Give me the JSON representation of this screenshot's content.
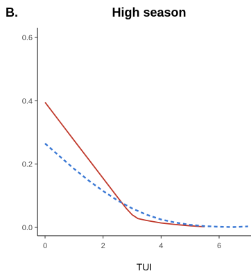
{
  "panel_label": "B.",
  "chart_data": {
    "type": "line",
    "title": "High season",
    "xlabel": "TUI",
    "ylabel": "",
    "xlim": [
      -0.25,
      7
    ],
    "ylim": [
      -0.03,
      0.62
    ],
    "x_ticks": [
      0,
      2,
      4,
      6
    ],
    "x_tick_labels": [
      "0",
      "2",
      "4",
      "6"
    ],
    "y_ticks": [
      0.0,
      0.2,
      0.4,
      0.6
    ],
    "y_tick_labels": [
      "0.0",
      "0.2",
      "0.4",
      "0.6"
    ],
    "grid": false,
    "legend": "none",
    "series": [
      {
        "style": "solid",
        "color": "#c0392b",
        "x": [
          0,
          0.5,
          1,
          1.5,
          2,
          2.5,
          2.8,
          3.0,
          3.2,
          3.5,
          4,
          4.5,
          5,
          5.5
        ],
        "y": [
          0.395,
          0.335,
          0.275,
          0.215,
          0.155,
          0.095,
          0.06,
          0.04,
          0.028,
          0.022,
          0.014,
          0.009,
          0.005,
          0.002
        ]
      },
      {
        "style": "dashed",
        "color": "#3a78d4",
        "x": [
          0,
          0.5,
          1,
          1.5,
          2,
          2.5,
          3,
          3.5,
          4,
          4.5,
          5,
          5.5,
          6,
          6.5,
          7
        ],
        "y": [
          0.265,
          0.225,
          0.185,
          0.148,
          0.115,
          0.085,
          0.06,
          0.04,
          0.025,
          0.015,
          0.008,
          0.004,
          0.002,
          0.001,
          0.003
        ]
      }
    ]
  }
}
